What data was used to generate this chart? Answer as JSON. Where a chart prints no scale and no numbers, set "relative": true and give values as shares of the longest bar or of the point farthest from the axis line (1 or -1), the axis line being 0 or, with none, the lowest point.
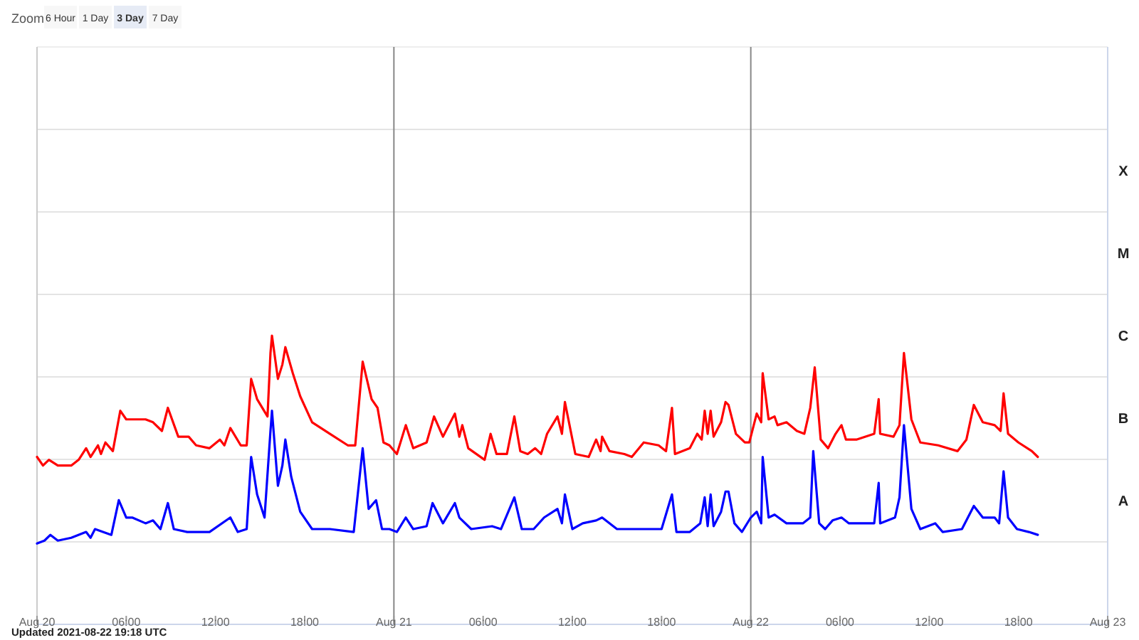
{
  "chart_data": {
    "type": "line",
    "annotations": [
      "Zoom",
      "6 Hour",
      "1 Day",
      "3 Day",
      "7 Day",
      "Updated 2021-08-22 19:18 UTC",
      "A",
      "B",
      "C",
      "M",
      "X"
    ],
    "xlim": [
      "2021-08-20",
      "2021-08-23"
    ],
    "xticks": [
      {
        "value": "2021-08-20",
        "label": "Aug 20"
      },
      {
        "value": "2021-08-20T06:00",
        "label": "06:00"
      },
      {
        "value": "2021-08-20T12:00",
        "label": "12:00"
      },
      {
        "value": "2021-08-20T18:00",
        "label": "18:00"
      },
      {
        "value": "2021-08-21",
        "label": "Aug 21"
      },
      {
        "value": "2021-08-21T06:00",
        "label": "06:00"
      },
      {
        "value": "2021-08-21T12:00",
        "label": "12:00"
      },
      {
        "value": "2021-08-21T18:00",
        "label": "18:00"
      },
      {
        "value": "2021-08-22",
        "label": "Aug 22"
      },
      {
        "value": "2021-08-22T06:00",
        "label": "06:00"
      },
      {
        "value": "2021-08-22T12:00",
        "label": "12:00"
      },
      {
        "value": "2021-08-22T18:00",
        "label": "18:00"
      },
      {
        "value": "2021-08-23",
        "label": "Aug 23"
      }
    ],
    "relative": true,
    "grid": "y",
    "ref_lines": [
      {
        "axis": "x",
        "value": "2021-08-21",
        "color": "#888888"
      },
      {
        "axis": "x",
        "value": "2021-08-22",
        "color": "#888888"
      }
    ],
    "series": [
      {
        "color": "#ff0000",
        "x": [
          "2021-08-20T00:00",
          "2021-08-20T00:24",
          "2021-08-20T00:48",
          "2021-08-20T01:24",
          "2021-08-20T02:18",
          "2021-08-20T02:48",
          "2021-08-20T03:18",
          "2021-08-20T03:36",
          "2021-08-20T04:06",
          "2021-08-20T04:18",
          "2021-08-20T04:36",
          "2021-08-20T05:06",
          "2021-08-20T05:36",
          "2021-08-20T06:00",
          "2021-08-20T07:18",
          "2021-08-20T07:48",
          "2021-08-20T08:24",
          "2021-08-20T08:48",
          "2021-08-20T09:30",
          "2021-08-20T10:12",
          "2021-08-20T10:42",
          "2021-08-20T11:36",
          "2021-08-20T12:18",
          "2021-08-20T12:36",
          "2021-08-20T13:00",
          "2021-08-20T13:42",
          "2021-08-20T14:06",
          "2021-08-20T14:24",
          "2021-08-20T14:48",
          "2021-08-20T15:30",
          "2021-08-20T15:42",
          "2021-08-20T15:48",
          "2021-08-20T16:12",
          "2021-08-20T16:30",
          "2021-08-20T16:42",
          "2021-08-20T17:12",
          "2021-08-20T17:42",
          "2021-08-20T18:30",
          "2021-08-20T19:42",
          "2021-08-20T20:54",
          "2021-08-20T21:24",
          "2021-08-20T21:54",
          "2021-08-20T22:30",
          "2021-08-20T22:54",
          "2021-08-20T23:18",
          "2021-08-20T23:42",
          "2021-08-21T00:12",
          "2021-08-21T00:48",
          "2021-08-21T01:18",
          "2021-08-21T02:12",
          "2021-08-21T02:42",
          "2021-08-21T03:18",
          "2021-08-21T04:06",
          "2021-08-21T04:24",
          "2021-08-21T04:36",
          "2021-08-21T05:00",
          "2021-08-21T06:06",
          "2021-08-21T06:30",
          "2021-08-21T06:54",
          "2021-08-21T07:36",
          "2021-08-21T08:06",
          "2021-08-21T08:30",
          "2021-08-21T09:00",
          "2021-08-21T09:30",
          "2021-08-21T09:54",
          "2021-08-21T10:18",
          "2021-08-21T11:00",
          "2021-08-21T11:18",
          "2021-08-21T11:30",
          "2021-08-21T12:12",
          "2021-08-21T13:06",
          "2021-08-21T13:36",
          "2021-08-21T13:54",
          "2021-08-21T14:00",
          "2021-08-21T14:30",
          "2021-08-21T15:30",
          "2021-08-21T16:00",
          "2021-08-21T16:48",
          "2021-08-21T17:48",
          "2021-08-21T18:18",
          "2021-08-21T18:42",
          "2021-08-21T18:54",
          "2021-08-21T19:54",
          "2021-08-21T20:24",
          "2021-08-21T20:42",
          "2021-08-21T20:54",
          "2021-08-21T21:06",
          "2021-08-21T21:18",
          "2021-08-21T21:30",
          "2021-08-21T22:00",
          "2021-08-21T22:18",
          "2021-08-21T22:30",
          "2021-08-21T23:00",
          "2021-08-21T23:36",
          "2021-08-21T23:54",
          "2021-08-22T00:24",
          "2021-08-22T00:42",
          "2021-08-22T00:48",
          "2021-08-22T01:12",
          "2021-08-22T01:36",
          "2021-08-22T01:48",
          "2021-08-22T02:24",
          "2021-08-22T03:06",
          "2021-08-22T03:36",
          "2021-08-22T04:00",
          "2021-08-22T04:18",
          "2021-08-22T04:42",
          "2021-08-22T05:12",
          "2021-08-22T05:42",
          "2021-08-22T06:06",
          "2021-08-22T06:24",
          "2021-08-22T07:06",
          "2021-08-22T08:18",
          "2021-08-22T08:36",
          "2021-08-22T08:42",
          "2021-08-22T09:36",
          "2021-08-22T10:00",
          "2021-08-22T10:18",
          "2021-08-22T10:48",
          "2021-08-22T11:24",
          "2021-08-22T12:36",
          "2021-08-22T13:54",
          "2021-08-22T14:30",
          "2021-08-22T15:00",
          "2021-08-22T15:36",
          "2021-08-22T16:24",
          "2021-08-22T16:48",
          "2021-08-22T17:00",
          "2021-08-22T17:18",
          "2021-08-22T18:00",
          "2021-08-22T18:54",
          "2021-08-22T19:18"
        ],
        "values": [
          0.58,
          0.55,
          0.57,
          0.55,
          0.55,
          0.57,
          0.61,
          0.58,
          0.62,
          0.59,
          0.63,
          0.6,
          0.74,
          0.71,
          0.71,
          0.7,
          0.67,
          0.75,
          0.65,
          0.65,
          0.62,
          0.61,
          0.64,
          0.62,
          0.68,
          0.62,
          0.62,
          0.85,
          0.78,
          0.72,
          0.94,
          1,
          0.85,
          0.9,
          0.96,
          0.87,
          0.79,
          0.7,
          0.66,
          0.62,
          0.62,
          0.91,
          0.78,
          0.75,
          0.63,
          0.62,
          0.59,
          0.69,
          0.61,
          0.63,
          0.72,
          0.65,
          0.73,
          0.65,
          0.69,
          0.61,
          0.57,
          0.66,
          0.59,
          0.59,
          0.72,
          0.6,
          0.59,
          0.61,
          0.59,
          0.66,
          0.72,
          0.66,
          0.77,
          0.59,
          0.58,
          0.64,
          0.6,
          0.65,
          0.6,
          0.59,
          0.58,
          0.63,
          0.62,
          0.6,
          0.75,
          0.59,
          0.61,
          0.66,
          0.64,
          0.74,
          0.66,
          0.74,
          0.65,
          0.7,
          0.77,
          0.76,
          0.66,
          0.63,
          0.63,
          0.73,
          0.7,
          0.87,
          0.71,
          0.72,
          0.69,
          0.7,
          0.67,
          0.66,
          0.75,
          0.89,
          0.64,
          0.61,
          0.66,
          0.69,
          0.64,
          0.64,
          0.66,
          0.78,
          0.66,
          0.65,
          0.69,
          0.94,
          0.71,
          0.63,
          0.62,
          0.6,
          0.64,
          0.76,
          0.7,
          0.69,
          0.67,
          0.8,
          0.66,
          0.63,
          0.6,
          0.58
        ]
      },
      {
        "color": "#0000ff",
        "x": [
          "2021-08-20T00:00",
          "2021-08-20T00:30",
          "2021-08-20T00:54",
          "2021-08-20T01:24",
          "2021-08-20T02:18",
          "2021-08-20T03:18",
          "2021-08-20T03:36",
          "2021-08-20T03:54",
          "2021-08-20T05:00",
          "2021-08-20T05:30",
          "2021-08-20T06:00",
          "2021-08-20T06:24",
          "2021-08-20T07:18",
          "2021-08-20T07:48",
          "2021-08-20T08:18",
          "2021-08-20T08:48",
          "2021-08-20T09:12",
          "2021-08-20T10:06",
          "2021-08-20T11:36",
          "2021-08-20T13:00",
          "2021-08-20T13:30",
          "2021-08-20T14:06",
          "2021-08-20T14:24",
          "2021-08-20T14:48",
          "2021-08-20T15:18",
          "2021-08-20T15:42",
          "2021-08-20T15:48",
          "2021-08-20T16:12",
          "2021-08-20T16:30",
          "2021-08-20T16:42",
          "2021-08-20T17:06",
          "2021-08-20T17:42",
          "2021-08-20T18:30",
          "2021-08-20T19:42",
          "2021-08-20T21:18",
          "2021-08-20T21:54",
          "2021-08-20T22:18",
          "2021-08-20T22:48",
          "2021-08-20T23:12",
          "2021-08-20T23:42",
          "2021-08-21T00:12",
          "2021-08-21T00:48",
          "2021-08-21T01:18",
          "2021-08-21T02:12",
          "2021-08-21T02:36",
          "2021-08-21T03:18",
          "2021-08-21T04:06",
          "2021-08-21T04:24",
          "2021-08-21T05:12",
          "2021-08-21T06:36",
          "2021-08-21T07:12",
          "2021-08-21T08:06",
          "2021-08-21T08:36",
          "2021-08-21T09:24",
          "2021-08-21T10:06",
          "2021-08-21T11:00",
          "2021-08-21T11:18",
          "2021-08-21T11:30",
          "2021-08-21T12:00",
          "2021-08-21T12:42",
          "2021-08-21T13:36",
          "2021-08-21T14:00",
          "2021-08-21T15:00",
          "2021-08-21T16:48",
          "2021-08-21T18:00",
          "2021-08-21T18:42",
          "2021-08-21T19:00",
          "2021-08-21T19:54",
          "2021-08-21T20:36",
          "2021-08-21T20:54",
          "2021-08-21T21:06",
          "2021-08-21T21:18",
          "2021-08-21T21:30",
          "2021-08-21T22:00",
          "2021-08-21T22:18",
          "2021-08-21T22:30",
          "2021-08-21T22:54",
          "2021-08-21T23:24",
          "2021-08-22T00:00",
          "2021-08-22T00:24",
          "2021-08-22T00:42",
          "2021-08-22T00:48",
          "2021-08-22T01:12",
          "2021-08-22T01:36",
          "2021-08-22T02:24",
          "2021-08-22T03:30",
          "2021-08-22T04:00",
          "2021-08-22T04:12",
          "2021-08-22T04:36",
          "2021-08-22T05:00",
          "2021-08-22T05:30",
          "2021-08-22T06:06",
          "2021-08-22T06:36",
          "2021-08-22T07:42",
          "2021-08-22T08:18",
          "2021-08-22T08:36",
          "2021-08-22T08:42",
          "2021-08-22T09:42",
          "2021-08-22T10:00",
          "2021-08-22T10:18",
          "2021-08-22T10:48",
          "2021-08-22T11:24",
          "2021-08-22T12:24",
          "2021-08-22T12:54",
          "2021-08-22T14:12",
          "2021-08-22T15:00",
          "2021-08-22T15:36",
          "2021-08-22T16:24",
          "2021-08-22T16:42",
          "2021-08-22T17:00",
          "2021-08-22T17:18",
          "2021-08-22T17:54",
          "2021-08-22T18:42",
          "2021-08-22T19:18"
        ],
        "values": [
          0.28,
          0.29,
          0.31,
          0.29,
          0.3,
          0.32,
          0.3,
          0.33,
          0.31,
          0.43,
          0.37,
          0.37,
          0.35,
          0.36,
          0.33,
          0.42,
          0.33,
          0.32,
          0.32,
          0.37,
          0.32,
          0.33,
          0.58,
          0.45,
          0.37,
          0.67,
          0.74,
          0.48,
          0.55,
          0.64,
          0.51,
          0.39,
          0.33,
          0.33,
          0.32,
          0.61,
          0.4,
          0.43,
          0.33,
          0.33,
          0.32,
          0.37,
          0.33,
          0.34,
          0.42,
          0.35,
          0.42,
          0.37,
          0.33,
          0.34,
          0.33,
          0.44,
          0.33,
          0.33,
          0.37,
          0.4,
          0.35,
          0.45,
          0.33,
          0.35,
          0.36,
          0.37,
          0.33,
          0.33,
          0.33,
          0.45,
          0.32,
          0.32,
          0.35,
          0.44,
          0.34,
          0.45,
          0.34,
          0.39,
          0.46,
          0.46,
          0.35,
          0.32,
          0.37,
          0.39,
          0.35,
          0.58,
          0.37,
          0.38,
          0.35,
          0.35,
          0.37,
          0.6,
          0.35,
          0.33,
          0.36,
          0.37,
          0.35,
          0.35,
          0.35,
          0.49,
          0.35,
          0.37,
          0.44,
          0.69,
          0.4,
          0.33,
          0.35,
          0.32,
          0.33,
          0.41,
          0.37,
          0.37,
          0.35,
          0.53,
          0.37,
          0.33,
          0.32,
          0.31
        ]
      }
    ]
  }
}
